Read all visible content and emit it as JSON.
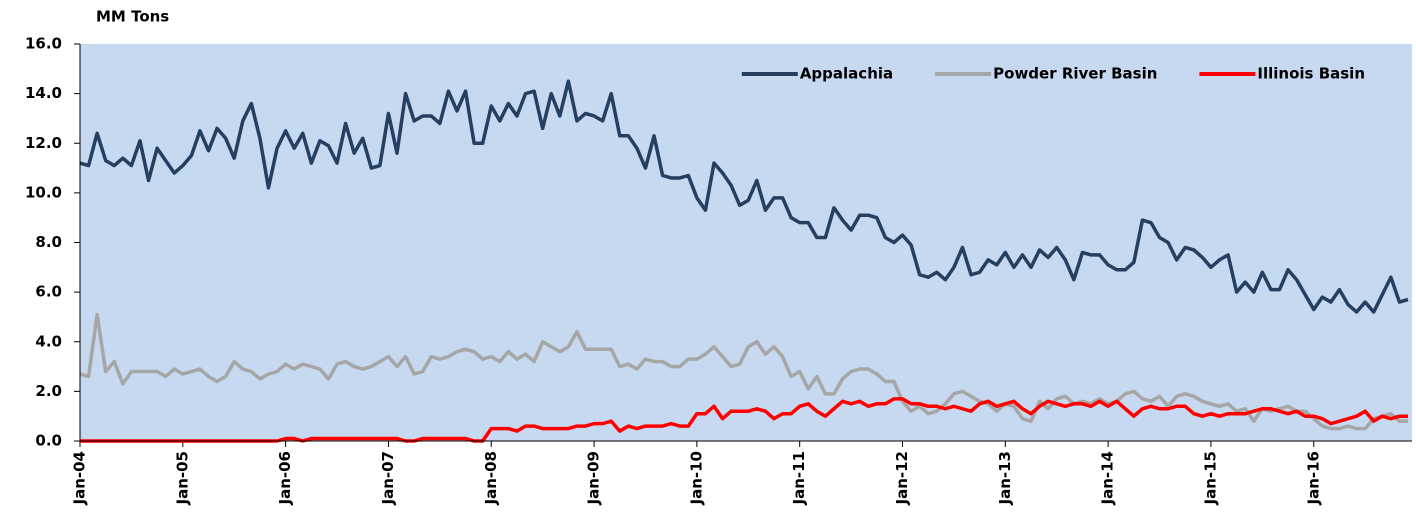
{
  "chart_data": {
    "type": "line",
    "y_label": "MM Tons",
    "categories": [
      "Jan-04",
      null,
      null,
      null,
      null,
      null,
      null,
      null,
      null,
      null,
      null,
      null,
      "Jan-05",
      null,
      null,
      null,
      null,
      null,
      null,
      null,
      null,
      null,
      null,
      null,
      "Jan-06",
      null,
      null,
      null,
      null,
      null,
      null,
      null,
      null,
      null,
      null,
      null,
      "Jan-07",
      null,
      null,
      null,
      null,
      null,
      null,
      null,
      null,
      null,
      null,
      null,
      "Jan-08",
      null,
      null,
      null,
      null,
      null,
      null,
      null,
      null,
      null,
      null,
      null,
      "Jan-09",
      null,
      null,
      null,
      null,
      null,
      null,
      null,
      null,
      null,
      null,
      null,
      "Jan-10",
      null,
      null,
      null,
      null,
      null,
      null,
      null,
      null,
      null,
      null,
      null,
      "Jan-11",
      null,
      null,
      null,
      null,
      null,
      null,
      null,
      null,
      null,
      null,
      null,
      "Jan-12",
      null,
      null,
      null,
      null,
      null,
      null,
      null,
      null,
      null,
      null,
      null,
      "Jan-13",
      null,
      null,
      null,
      null,
      null,
      null,
      null,
      null,
      null,
      null,
      null,
      "Jan-14",
      null,
      null,
      null,
      null,
      null,
      null,
      null,
      null,
      null,
      null,
      null,
      "Jan-15",
      null,
      null,
      null,
      null,
      null,
      null,
      null,
      null,
      null,
      null,
      null,
      "Jan-16",
      null,
      null,
      null,
      null,
      null,
      null,
      null,
      null,
      null,
      null,
      null
    ],
    "series": [
      {
        "name": "Appalachia",
        "color": "#243f60",
        "values": [
          11.2,
          11.1,
          12.4,
          11.3,
          11.1,
          11.4,
          11.1,
          12.1,
          10.5,
          11.8,
          11.3,
          10.8,
          11.1,
          11.5,
          12.5,
          11.7,
          12.6,
          12.2,
          11.4,
          12.9,
          13.6,
          12.2,
          10.2,
          11.8,
          12.5,
          11.8,
          12.4,
          11.2,
          12.1,
          11.9,
          11.2,
          12.8,
          11.6,
          12.2,
          11.0,
          11.1,
          13.2,
          11.6,
          14.0,
          12.9,
          13.1,
          13.1,
          12.8,
          14.1,
          13.3,
          14.1,
          12.0,
          12.0,
          13.5,
          12.9,
          13.6,
          13.1,
          14.0,
          14.1,
          12.6,
          14.0,
          13.1,
          14.5,
          12.9,
          13.2,
          13.1,
          12.9,
          14.0,
          12.3,
          12.3,
          11.8,
          11.0,
          12.3,
          10.7,
          10.6,
          10.6,
          10.7,
          9.8,
          9.3,
          11.2,
          10.8,
          10.3,
          9.5,
          9.7,
          10.5,
          9.3,
          9.8,
          9.8,
          9.0,
          8.8,
          8.8,
          8.2,
          8.2,
          9.4,
          8.9,
          8.5,
          9.1,
          9.1,
          9.0,
          8.2,
          8.0,
          8.3,
          7.9,
          6.7,
          6.6,
          6.8,
          6.5,
          7.0,
          7.8,
          6.7,
          6.8,
          7.3,
          7.1,
          7.6,
          7.0,
          7.5,
          7.0,
          7.7,
          7.4,
          7.8,
          7.3,
          6.5,
          7.6,
          7.5,
          7.5,
          7.1,
          6.9,
          6.9,
          7.2,
          8.9,
          8.8,
          8.2,
          8.0,
          7.3,
          7.8,
          7.7,
          7.4,
          7.0,
          7.3,
          7.5,
          6.0,
          6.4,
          6.0,
          6.8,
          6.1,
          6.1,
          6.9,
          6.5,
          5.9,
          5.3,
          5.8,
          5.6,
          6.1,
          5.5,
          5.2,
          5.6,
          5.2,
          5.9,
          6.6,
          5.6,
          5.7
        ]
      },
      {
        "name": "Powder River Basin",
        "color": "#a6a6a6",
        "values": [
          2.7,
          2.6,
          5.1,
          2.8,
          3.2,
          2.3,
          2.8,
          2.8,
          2.8,
          2.8,
          2.6,
          2.9,
          2.7,
          2.8,
          2.9,
          2.6,
          2.4,
          2.6,
          3.2,
          2.9,
          2.8,
          2.5,
          2.7,
          2.8,
          3.1,
          2.9,
          3.1,
          3.0,
          2.9,
          2.5,
          3.1,
          3.2,
          3.0,
          2.9,
          3.0,
          3.2,
          3.4,
          3.0,
          3.4,
          2.7,
          2.8,
          3.4,
          3.3,
          3.4,
          3.6,
          3.7,
          3.6,
          3.3,
          3.4,
          3.2,
          3.6,
          3.3,
          3.5,
          3.2,
          4.0,
          3.8,
          3.6,
          3.8,
          4.4,
          3.7,
          3.7,
          3.7,
          3.7,
          3.0,
          3.1,
          2.9,
          3.3,
          3.2,
          3.2,
          3.0,
          3.0,
          3.3,
          3.3,
          3.5,
          3.8,
          3.4,
          3.0,
          3.1,
          3.8,
          4.0,
          3.5,
          3.8,
          3.4,
          2.6,
          2.8,
          2.1,
          2.6,
          1.9,
          1.9,
          2.5,
          2.8,
          2.9,
          2.9,
          2.7,
          2.4,
          2.4,
          1.6,
          1.2,
          1.4,
          1.1,
          1.2,
          1.5,
          1.9,
          2.0,
          1.8,
          1.6,
          1.5,
          1.2,
          1.5,
          1.4,
          0.9,
          0.8,
          1.6,
          1.3,
          1.7,
          1.8,
          1.5,
          1.6,
          1.5,
          1.7,
          1.5,
          1.6,
          1.9,
          2.0,
          1.7,
          1.6,
          1.8,
          1.4,
          1.8,
          1.9,
          1.8,
          1.6,
          1.5,
          1.4,
          1.5,
          1.2,
          1.3,
          0.8,
          1.3,
          1.2,
          1.3,
          1.4,
          1.2,
          1.2,
          0.9,
          0.6,
          0.5,
          0.5,
          0.6,
          0.5,
          0.5,
          0.9,
          1.0,
          1.1,
          0.8,
          0.8
        ]
      },
      {
        "name": "Illinois Basin",
        "color": "#ff0000",
        "values": [
          0,
          0,
          0,
          0,
          0,
          0,
          0,
          0,
          0,
          0,
          0,
          0,
          0,
          0,
          0,
          0,
          0,
          0,
          0,
          0,
          0,
          0,
          0,
          0,
          0.1,
          0.1,
          0,
          0.1,
          0.1,
          0.1,
          0.1,
          0.1,
          0.1,
          0.1,
          0.1,
          0.1,
          0.1,
          0.1,
          0,
          0,
          0.1,
          0.1,
          0.1,
          0.1,
          0.1,
          0.1,
          0,
          0,
          0.5,
          0.5,
          0.5,
          0.4,
          0.6,
          0.6,
          0.5,
          0.5,
          0.5,
          0.5,
          0.6,
          0.6,
          0.7,
          0.7,
          0.8,
          0.4,
          0.6,
          0.5,
          0.6,
          0.6,
          0.6,
          0.7,
          0.6,
          0.6,
          1.1,
          1.1,
          1.4,
          0.9,
          1.2,
          1.2,
          1.2,
          1.3,
          1.2,
          0.9,
          1.1,
          1.1,
          1.4,
          1.5,
          1.2,
          1.0,
          1.3,
          1.6,
          1.5,
          1.6,
          1.4,
          1.5,
          1.5,
          1.7,
          1.7,
          1.5,
          1.5,
          1.4,
          1.4,
          1.3,
          1.4,
          1.3,
          1.2,
          1.5,
          1.6,
          1.4,
          1.5,
          1.6,
          1.3,
          1.1,
          1.4,
          1.6,
          1.5,
          1.4,
          1.5,
          1.5,
          1.4,
          1.6,
          1.4,
          1.6,
          1.3,
          1.0,
          1.3,
          1.4,
          1.3,
          1.3,
          1.4,
          1.4,
          1.1,
          1.0,
          1.1,
          1.0,
          1.1,
          1.1,
          1.1,
          1.2,
          1.3,
          1.3,
          1.2,
          1.1,
          1.2,
          1.0,
          1.0,
          0.9,
          0.7,
          0.8,
          0.9,
          1.0,
          1.2,
          0.8,
          1.0,
          0.9,
          1.0,
          1.0
        ]
      }
    ],
    "ylim": [
      0,
      16
    ],
    "yticks": [
      {
        "value": 0,
        "label": "0.0"
      },
      {
        "value": 2,
        "label": "2.0"
      },
      {
        "value": 4,
        "label": "4.0"
      },
      {
        "value": 6,
        "label": "6.0"
      },
      {
        "value": 8,
        "label": "8.0"
      },
      {
        "value": 10,
        "label": "10.0"
      },
      {
        "value": 12,
        "label": "12.0"
      },
      {
        "value": 14,
        "label": "14.0"
      },
      {
        "value": 16,
        "label": "16.0"
      }
    ],
    "legend": "upper right",
    "plot_background": "#c6d9f1"
  }
}
